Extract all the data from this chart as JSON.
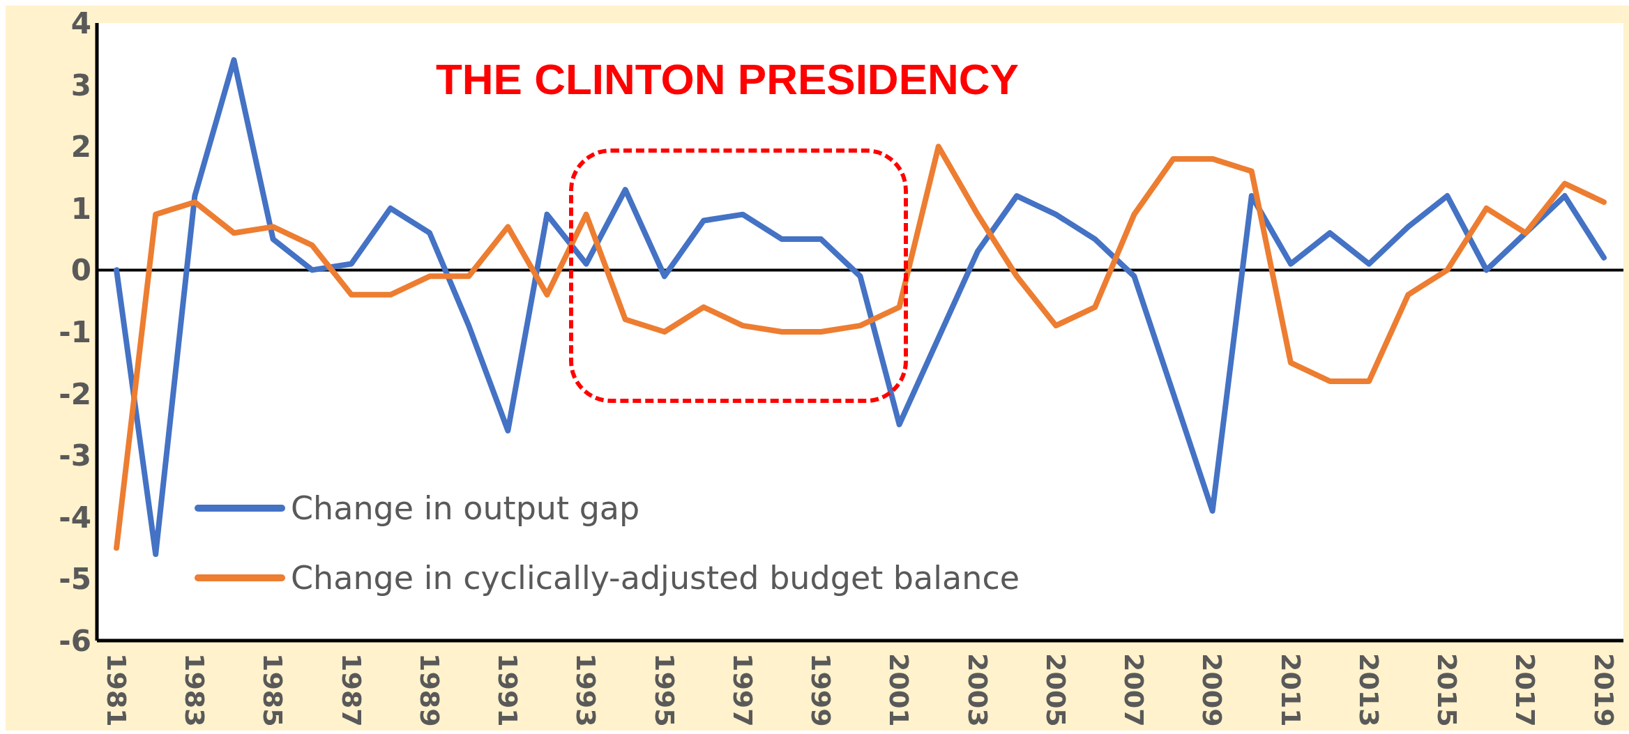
{
  "chart_data": {
    "type": "line",
    "categories": [
      "1981",
      null,
      "1983",
      null,
      "1985",
      null,
      "1987",
      null,
      "1989",
      null,
      "1991",
      null,
      "1993",
      null,
      "1995",
      null,
      "1997",
      null,
      "1999",
      null,
      "2001",
      null,
      "2003",
      null,
      "2005",
      null,
      "2007",
      null,
      "2009",
      null,
      "2011",
      null,
      "2013",
      null,
      "2015",
      null,
      "2017",
      null,
      "2019"
    ],
    "series": [
      {
        "name": "Change in output gap",
        "color": "#4472c4",
        "values": [
          0,
          -4.6,
          1.2,
          3.4,
          0.5,
          0,
          0.1,
          1.0,
          0.6,
          -0.9,
          -2.6,
          0.9,
          0.1,
          1.3,
          -0.1,
          0.8,
          0.9,
          0.5,
          0.5,
          -0.1,
          -2.5,
          -1.1,
          0.3,
          1.2,
          0.9,
          0.5,
          -0.1,
          -2.0,
          -3.9,
          1.2,
          0.1,
          0.6,
          0.1,
          0.7,
          1.2,
          0,
          0.6,
          1.2,
          0.2
        ]
      },
      {
        "name": "Change in cyclically-adjusted budget balance",
        "color": "#ed7d31",
        "values": [
          -4.5,
          0.9,
          1.1,
          0.6,
          0.7,
          0.4,
          -0.4,
          -0.4,
          -0.1,
          -0.1,
          0.7,
          -0.4,
          0.9,
          -0.8,
          -1.0,
          -0.6,
          -0.9,
          -1.0,
          -1.0,
          -0.9,
          -0.6,
          2.0,
          0.9,
          -0.1,
          -0.9,
          -0.6,
          0.9,
          1.8,
          1.8,
          1.6,
          -1.5,
          -1.8,
          -1.8,
          -0.4,
          0,
          1.0,
          0.6,
          1.4,
          1.1
        ]
      }
    ],
    "ylim": [
      -6,
      4
    ],
    "yticks": [
      -6,
      -5,
      -4,
      -3,
      -2,
      -1,
      0,
      1,
      2,
      3,
      4
    ],
    "ref_lines": [
      {
        "axis": "y",
        "value": 0,
        "color": "#000000"
      }
    ],
    "annotations": [
      "THE CLINTON PRESIDENCY"
    ],
    "legend": "bottom left",
    "grid": false,
    "marker": "none",
    "line_style": "solid"
  }
}
